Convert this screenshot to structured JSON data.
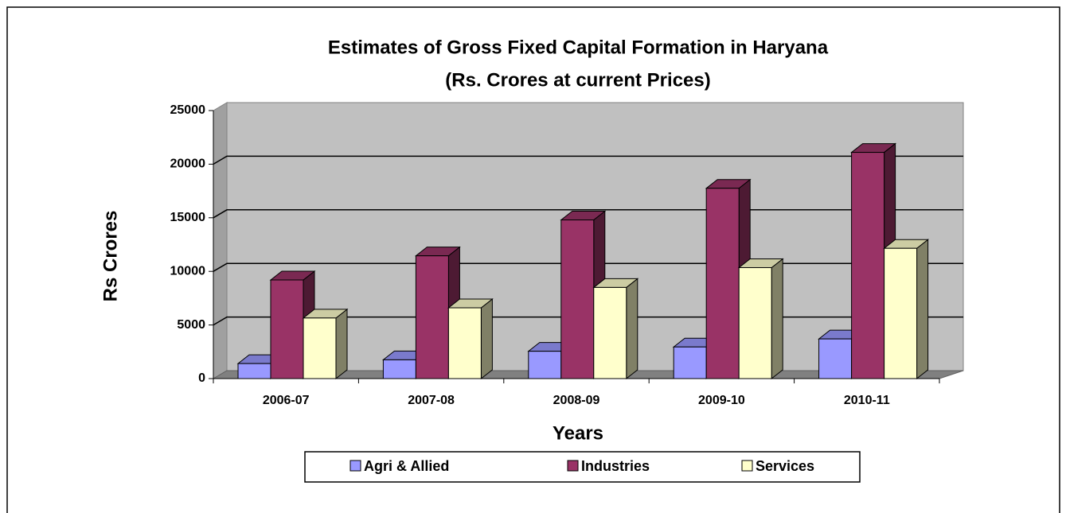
{
  "chart_data": {
    "type": "bar3d",
    "title": "Estimates of Gross Fixed Capital Formation in Haryana",
    "subtitle": "(Rs. Crores at current Prices)",
    "x_label": "Years",
    "y_label": "Rs Crores",
    "categories": [
      "2006-07",
      "2007-08",
      "2008-09",
      "2009-10",
      "2010-11"
    ],
    "series": [
      {
        "name": "Agri & Allied",
        "color": "#9999ff",
        "values": [
          1400,
          1750,
          2550,
          2950,
          3700
        ]
      },
      {
        "name": "Industries",
        "color": "#993366",
        "values": [
          9200,
          11450,
          14800,
          17750,
          21100
        ]
      },
      {
        "name": "Services",
        "color": "#ffffcc",
        "values": [
          5650,
          6600,
          8500,
          10350,
          12150
        ]
      }
    ],
    "ylim": [
      0,
      25000
    ],
    "yticks": [
      0,
      5000,
      10000,
      15000,
      20000,
      25000
    ],
    "grid": true,
    "legend": "bottom"
  }
}
